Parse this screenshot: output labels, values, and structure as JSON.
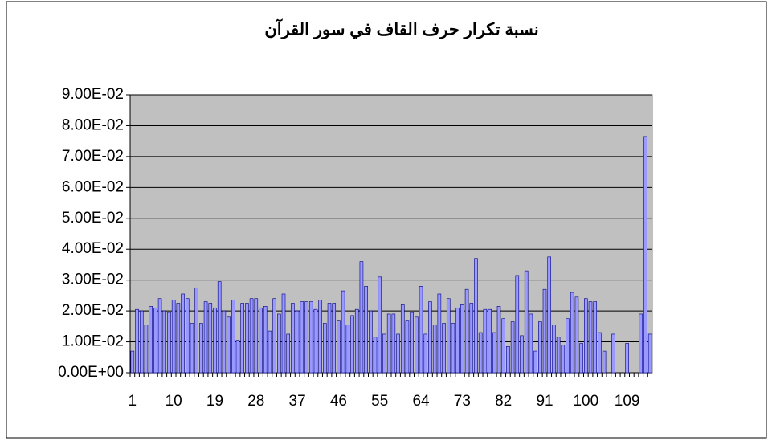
{
  "chart_data": {
    "type": "bar",
    "title": "نسبة تكرار حرف القاف في سور القرآن",
    "categories": [
      1,
      null,
      null,
      null,
      null,
      null,
      null,
      null,
      null,
      10,
      null,
      null,
      null,
      null,
      null,
      null,
      null,
      null,
      19,
      null,
      null,
      null,
      null,
      null,
      null,
      null,
      null,
      28,
      null,
      null,
      null,
      null,
      null,
      null,
      null,
      null,
      37,
      null,
      null,
      null,
      null,
      null,
      null,
      null,
      null,
      46,
      null,
      null,
      null,
      null,
      null,
      null,
      null,
      null,
      55,
      null,
      null,
      null,
      null,
      null,
      null,
      null,
      null,
      64,
      null,
      null,
      null,
      null,
      null,
      null,
      null,
      null,
      73,
      null,
      null,
      null,
      null,
      null,
      null,
      null,
      null,
      82,
      null,
      null,
      null,
      null,
      null,
      null,
      null,
      null,
      91,
      null,
      null,
      null,
      null,
      null,
      null,
      null,
      null,
      100,
      null,
      null,
      null,
      null,
      null,
      null,
      null,
      null,
      109,
      null,
      null,
      null,
      null,
      null
    ],
    "values": [
      0.007,
      0.0205,
      0.02,
      0.0155,
      0.0215,
      0.021,
      0.024,
      0.02,
      0.0195,
      0.0235,
      0.0225,
      0.0255,
      0.024,
      0.016,
      0.0275,
      0.016,
      0.023,
      0.0225,
      0.021,
      0.0295,
      0.02,
      0.018,
      0.0235,
      0.0105,
      0.0225,
      0.0225,
      0.024,
      0.024,
      0.021,
      0.0215,
      0.0135,
      0.024,
      0.019,
      0.0255,
      0.0125,
      0.0225,
      0.02,
      0.023,
      0.023,
      0.023,
      0.0205,
      0.0235,
      0.016,
      0.0225,
      0.0225,
      0.017,
      0.0265,
      0.0155,
      0.0185,
      0.0205,
      0.036,
      0.028,
      0.02,
      0.0115,
      0.031,
      0.0125,
      0.019,
      0.019,
      0.0125,
      0.022,
      0.017,
      0.0195,
      0.018,
      0.028,
      0.0125,
      0.023,
      0.0155,
      0.0255,
      0.016,
      0.024,
      0.016,
      0.021,
      0.022,
      0.027,
      0.0225,
      0.037,
      0.013,
      0.0205,
      0.0205,
      0.013,
      0.0215,
      0.0175,
      0.0085,
      0.0165,
      0.0315,
      0.012,
      0.033,
      0.019,
      0.007,
      0.0165,
      0.027,
      0.0375,
      0.0155,
      0.0115,
      0.009,
      0.0175,
      0.026,
      0.0245,
      0.0095,
      0.024,
      0.023,
      0.023,
      0.013,
      0.007,
      0,
      0.0125,
      0,
      0,
      0.0095,
      0,
      0,
      0.019,
      0.0765,
      0.0125
    ],
    "color": "#9999ff",
    "ylim": [
      0,
      0.09
    ],
    "yticks": [
      {
        "value": 0,
        "label": "0.00E+00"
      },
      {
        "value": 0.01,
        "label": "1.00E-02"
      },
      {
        "value": 0.02,
        "label": "2.00E-02"
      },
      {
        "value": 0.03,
        "label": "3.00E-02"
      },
      {
        "value": 0.04,
        "label": "4.00E-02"
      },
      {
        "value": 0.05,
        "label": "5.00E-02"
      },
      {
        "value": 0.06,
        "label": "6.00E-02"
      },
      {
        "value": 0.07,
        "label": "7.00E-02"
      },
      {
        "value": 0.08,
        "label": "8.00E-02"
      },
      {
        "value": 0.09,
        "label": "9.00E-02"
      }
    ],
    "grid": true
  }
}
